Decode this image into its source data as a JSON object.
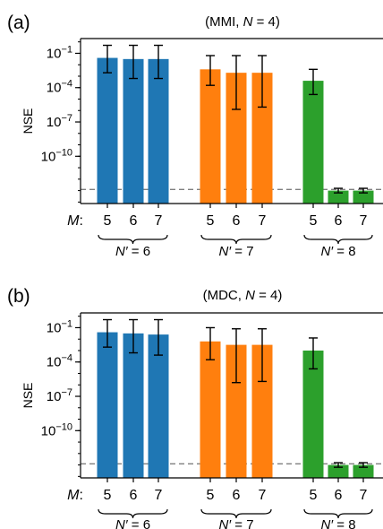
{
  "chart_data": [
    {
      "type": "bar",
      "panel_label": "(a)",
      "title_prefix": "(MMI, ",
      "title_var": "N",
      "title_suffix": " = 4)",
      "yscale": "log",
      "ylabel": "NSE",
      "y_ticks": [
        {
          "exp": -1,
          "label": "10",
          "sup": "−1"
        },
        {
          "exp": -4,
          "label": "10",
          "sup": "−4"
        },
        {
          "exp": -7,
          "label": "10",
          "sup": "−7"
        },
        {
          "exp": -10,
          "label": "10",
          "sup": "−10"
        }
      ],
      "reference_line_exp": -12.9,
      "m_prefix": "M",
      "m_suffix": ":",
      "groups": [
        {
          "var": "N′",
          "value": " = 6",
          "color": "#1f77b4",
          "bars": [
            {
              "m": "5",
              "exp": -1.4,
              "err_low": -2.7,
              "err_high": -0.3
            },
            {
              "m": "6",
              "exp": -1.5,
              "err_low": -3.2,
              "err_high": -0.3
            },
            {
              "m": "7",
              "exp": -1.5,
              "err_low": -3.2,
              "err_high": -0.3
            }
          ]
        },
        {
          "var": "N′",
          "value": " = 7",
          "color": "#ff7f0e",
          "bars": [
            {
              "m": "5",
              "exp": -2.4,
              "err_low": -3.8,
              "err_high": -1.2
            },
            {
              "m": "6",
              "exp": -2.7,
              "err_low": -5.9,
              "err_high": -1.2
            },
            {
              "m": "7",
              "exp": -2.7,
              "err_low": -5.7,
              "err_high": -1.2
            }
          ]
        },
        {
          "var": "N′",
          "value": " = 8",
          "color": "#2ca02c",
          "bars": [
            {
              "m": "5",
              "exp": -3.4,
              "err_low": -4.6,
              "err_high": -2.4
            },
            {
              "m": "6",
              "exp": -13.0,
              "err_low": -13.2,
              "err_high": -12.8
            },
            {
              "m": "7",
              "exp": -13.0,
              "err_low": -13.2,
              "err_high": -12.8
            }
          ]
        }
      ]
    },
    {
      "type": "bar",
      "panel_label": "(b)",
      "title_prefix": "(MDC, ",
      "title_var": "N",
      "title_suffix": " = 4)",
      "yscale": "log",
      "ylabel": "NSE",
      "y_ticks": [
        {
          "exp": -1,
          "label": "10",
          "sup": "−1"
        },
        {
          "exp": -4,
          "label": "10",
          "sup": "−4"
        },
        {
          "exp": -7,
          "label": "10",
          "sup": "−7"
        },
        {
          "exp": -10,
          "label": "10",
          "sup": "−10"
        }
      ],
      "reference_line_exp": -12.9,
      "m_prefix": "M",
      "m_suffix": ":",
      "groups": [
        {
          "var": "N′",
          "value": " = 6",
          "color": "#1f77b4",
          "bars": [
            {
              "m": "5",
              "exp": -1.4,
              "err_low": -2.7,
              "err_high": -0.3
            },
            {
              "m": "6",
              "exp": -1.5,
              "err_low": -3.2,
              "err_high": -0.3
            },
            {
              "m": "7",
              "exp": -1.6,
              "err_low": -3.4,
              "err_high": -0.3
            }
          ]
        },
        {
          "var": "N′",
          "value": " = 7",
          "color": "#ff7f0e",
          "bars": [
            {
              "m": "5",
              "exp": -2.2,
              "err_low": -3.8,
              "err_high": -1.0
            },
            {
              "m": "6",
              "exp": -2.5,
              "err_low": -5.8,
              "err_high": -1.1
            },
            {
              "m": "7",
              "exp": -2.5,
              "err_low": -5.7,
              "err_high": -1.1
            }
          ]
        },
        {
          "var": "N′",
          "value": " = 8",
          "color": "#2ca02c",
          "bars": [
            {
              "m": "5",
              "exp": -3.0,
              "err_low": -4.6,
              "err_high": -1.9
            },
            {
              "m": "6",
              "exp": -13.0,
              "err_low": -13.2,
              "err_high": -12.8
            },
            {
              "m": "7",
              "exp": -13.0,
              "err_low": -13.2,
              "err_high": -12.8
            }
          ]
        }
      ]
    }
  ]
}
